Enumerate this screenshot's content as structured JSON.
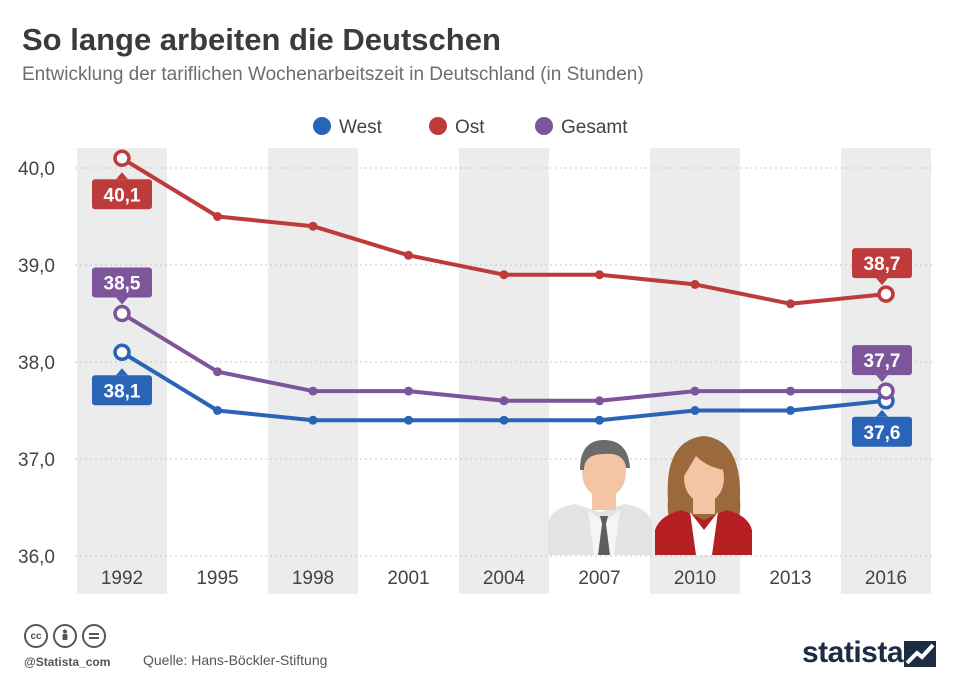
{
  "title": "So lange arbeiten die Deutschen",
  "subtitle": "Entwicklung der tariflichen Wochenarbeitszeit in Deutschland (in Stunden)",
  "chart_data": {
    "type": "line",
    "categories": [
      "1992",
      "1995",
      "1998",
      "2001",
      "2004",
      "2007",
      "2010",
      "2013",
      "2016"
    ],
    "ylim": [
      36.0,
      40.0
    ],
    "yticks": [
      "40,0",
      "39,0",
      "38,0",
      "37,0",
      "36,0"
    ],
    "ytick_values": [
      40.0,
      39.0,
      38.0,
      37.0,
      36.0
    ],
    "legend_position": "top-center",
    "series": [
      {
        "name": "West",
        "color": "#2a64b7",
        "values": [
          38.1,
          37.5,
          37.4,
          37.4,
          37.4,
          37.4,
          37.5,
          37.5,
          37.6
        ],
        "labels": {
          "first": "38,1",
          "last": "37,6"
        }
      },
      {
        "name": "Ost",
        "color": "#be3b3c",
        "values": [
          40.1,
          39.5,
          39.4,
          39.1,
          38.9,
          38.9,
          38.8,
          38.6,
          38.7
        ],
        "labels": {
          "first": "40,1",
          "last": "38,7"
        }
      },
      {
        "name": "Gesamt",
        "color": "#7c559b",
        "values": [
          38.5,
          37.9,
          37.7,
          37.7,
          37.6,
          37.6,
          37.7,
          37.7,
          37.7
        ],
        "labels": {
          "first": "38,5",
          "last": "37,7"
        }
      }
    ]
  },
  "footer": {
    "handle": "@Statista_com",
    "source": "Quelle: Hans-Böckler-Stiftung",
    "brand": "statista"
  },
  "icons": [
    "cc-icon",
    "by-icon",
    "nd-icon",
    "man-icon",
    "woman-icon",
    "statista-logo-icon"
  ]
}
